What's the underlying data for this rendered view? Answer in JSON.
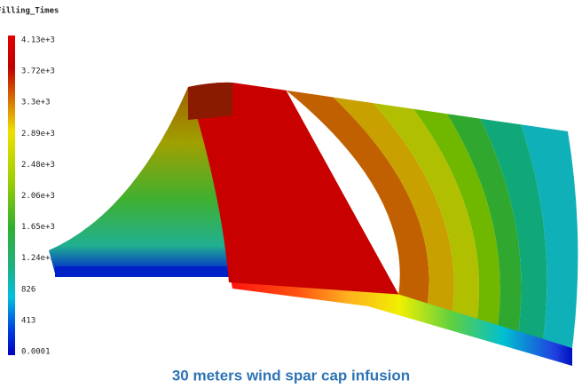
{
  "legend": {
    "title": "Filling_Times",
    "labels": [
      "4.13e+3",
      "3.72e+3",
      "3.3e+3",
      "2.89e+3",
      "2.48e+3",
      "2.06e+3",
      "1.65e+3",
      "1.24e+3",
      "826",
      "413",
      "0.0001"
    ]
  },
  "caption": "30 meters wind spar cap infusion"
}
